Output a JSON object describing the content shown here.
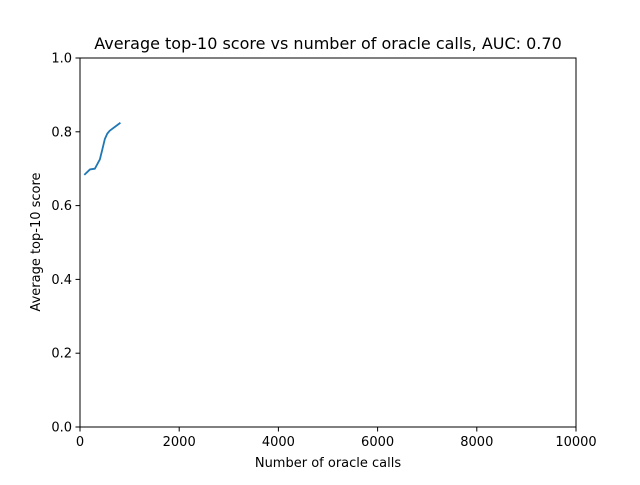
{
  "chart_data": {
    "type": "line",
    "title": "Average top-10 score vs number of oracle calls, AUC: 0.70",
    "xlabel": "Number of oracle calls",
    "ylabel": "Average top-10 score",
    "xlim": [
      0,
      10000
    ],
    "ylim": [
      0,
      1.0
    ],
    "xticks": [
      0,
      2000,
      4000,
      6000,
      8000,
      10000
    ],
    "xtick_labels": [
      "0",
      "2000",
      "4000",
      "6000",
      "8000",
      "10000"
    ],
    "yticks": [
      0,
      0.2,
      0.4,
      0.6,
      0.8,
      1.0
    ],
    "ytick_labels": [
      "0.0",
      "0.2",
      "0.4",
      "0.6",
      "0.8",
      "1.0"
    ],
    "grid": false,
    "series": [
      {
        "color": "#1f77b4",
        "x": [
          100,
          200,
          300,
          400,
          450,
          500,
          550,
          600,
          700,
          800
        ],
        "y": [
          0.685,
          0.698,
          0.7,
          0.725,
          0.752,
          0.78,
          0.795,
          0.803,
          0.813,
          0.823
        ]
      }
    ]
  }
}
